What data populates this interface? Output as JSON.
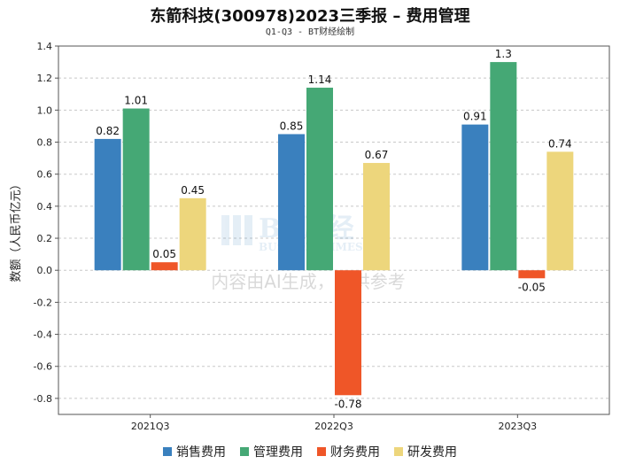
{
  "chart_data": {
    "type": "bar",
    "title": "东箭科技(300978)2023三季报 – 费用管理",
    "subtitle": "Q1-Q3 - BT财经绘制",
    "xlabel": "",
    "ylabel": "数额（人民币亿元）",
    "ylim": [
      -0.9,
      1.4
    ],
    "yticks": [
      1.4,
      1.2,
      1.0,
      0.8,
      0.6,
      0.4,
      0.2,
      0.0,
      -0.2,
      -0.4,
      -0.6,
      -0.8
    ],
    "ytick_labels": [
      "1.4",
      "1.2",
      "1.0",
      "0.8",
      "0.6",
      "0.4",
      "0.2",
      "0.0",
      "-0.2",
      "-0.4",
      "-0.6",
      "-0.8"
    ],
    "categories": [
      "2021Q3",
      "2022Q3",
      "2023Q3"
    ],
    "series": [
      {
        "name": "销售费用",
        "color": "#3a80be",
        "values": [
          0.82,
          0.85,
          0.91
        ],
        "labels": [
          "0.82",
          "0.85",
          "0.91"
        ]
      },
      {
        "name": "管理费用",
        "color": "#45a875",
        "values": [
          1.01,
          1.14,
          1.3
        ],
        "labels": [
          "1.01",
          "1.14",
          "1.3"
        ]
      },
      {
        "name": "财务费用",
        "color": "#ef5628",
        "values": [
          0.05,
          -0.78,
          -0.05
        ],
        "labels": [
          "0.05",
          "-0.78",
          "-0.05"
        ]
      },
      {
        "name": "研发费用",
        "color": "#edd67c",
        "values": [
          0.45,
          0.67,
          0.74
        ],
        "labels": [
          "0.45",
          "0.67",
          "0.74"
        ]
      }
    ],
    "grid": true,
    "legend_position": "bottom"
  },
  "watermark": {
    "brand": "BT财经",
    "brand_en": "BUSINESSTIMES",
    "disclaimer": "内容由AI生成，仅供参考"
  }
}
